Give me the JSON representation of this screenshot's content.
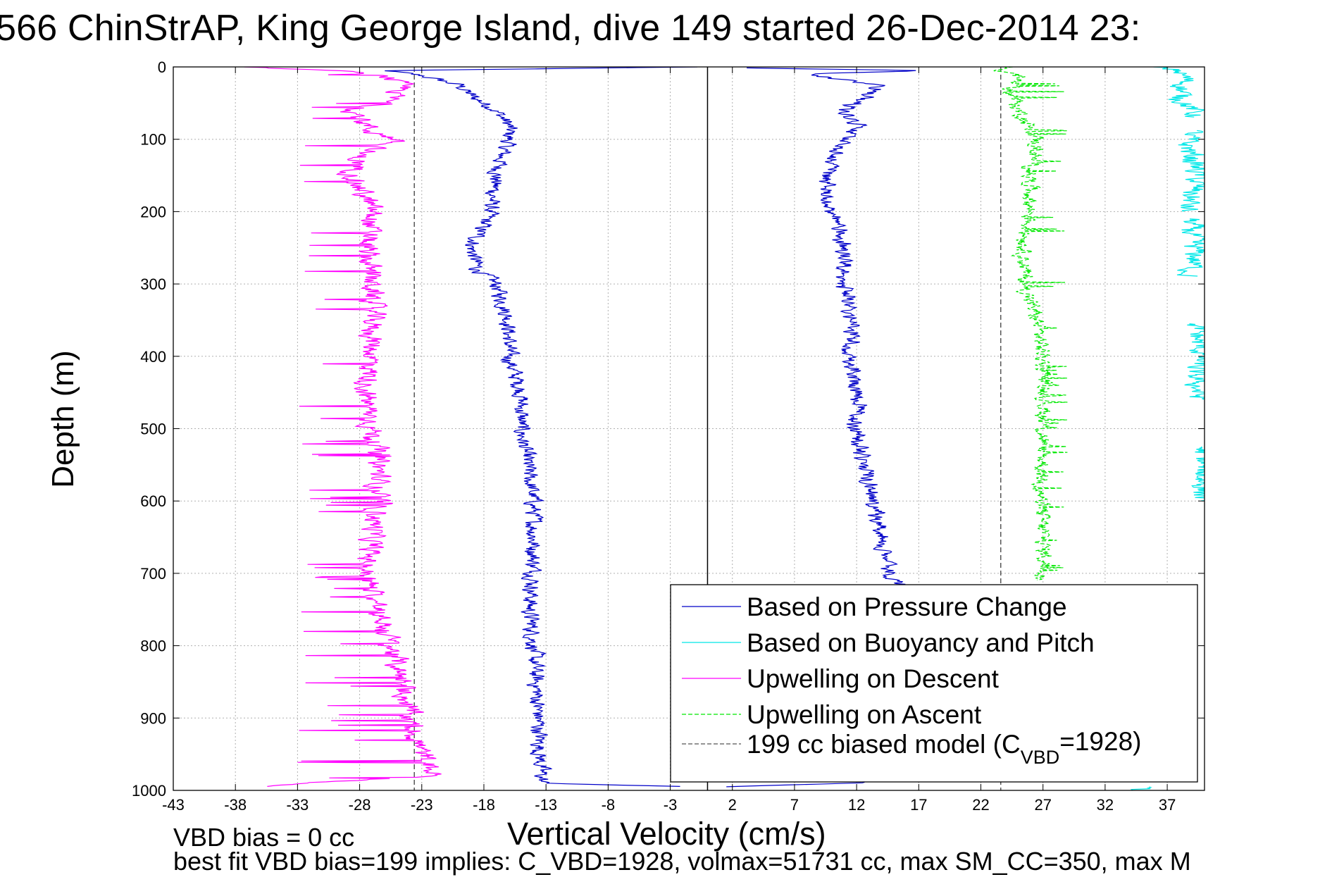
{
  "chart_data": {
    "type": "line",
    "title": "566 ChinStrAP, King George Island, dive 149 started 26-Dec-2014 23:",
    "xlabel": "Vertical Velocity (cm/s)",
    "ylabel": "Depth (m)",
    "xlim": [
      -43,
      40
    ],
    "ylim": [
      0,
      1000
    ],
    "y_reversed": true,
    "grid": true,
    "x_ticks": [
      -43,
      -38,
      -33,
      -28,
      -23,
      -18,
      -13,
      -8,
      -3,
      2,
      7,
      12,
      17,
      22,
      27,
      32,
      37
    ],
    "y_ticks": [
      0,
      100,
      200,
      300,
      400,
      500,
      600,
      700,
      800,
      900,
      1000
    ],
    "reference_lines": [
      {
        "x": 0,
        "style": "solid",
        "color": "#000000"
      },
      {
        "x": -23.6,
        "style": "dashed",
        "color": "#555555"
      },
      {
        "x": 23.6,
        "style": "dashed",
        "color": "#555555"
      }
    ],
    "series": [
      {
        "name": "Based on Pressure Change",
        "color": "#0000c8",
        "style": "solid",
        "noise": 0.8,
        "descent": {
          "depth": [
            0,
            5,
            12,
            25,
            40,
            60,
            80,
            100,
            120,
            150,
            200,
            250,
            280,
            300,
            350,
            400,
            450,
            500,
            550,
            600,
            650,
            700,
            750,
            800,
            850,
            900,
            950,
            990,
            995
          ],
          "velocity": [
            -1,
            -26,
            -23,
            -20,
            -19,
            -17,
            -16,
            -16,
            -16.5,
            -17,
            -17.5,
            -19,
            -18.5,
            -17,
            -16,
            -16,
            -15,
            -15,
            -14.5,
            -14,
            -14,
            -14,
            -14.3,
            -14,
            -13.8,
            -13.6,
            -13.5,
            -13.3,
            -1
          ]
        },
        "ascent": {
          "depth": [
            995,
            990,
            950,
            900,
            850,
            800,
            750,
            715,
            700,
            650,
            600,
            550,
            500,
            450,
            400,
            350,
            300,
            250,
            200,
            150,
            100,
            80,
            60,
            40,
            25,
            10,
            5,
            1
          ],
          "velocity": [
            1,
            12,
            15,
            16,
            16,
            16,
            16,
            15.5,
            14.5,
            14,
            13.5,
            12.5,
            12,
            12,
            11.5,
            11.5,
            11,
            11,
            10,
            9.5,
            11,
            12,
            11,
            13,
            13.5,
            8,
            17,
            1
          ]
        }
      },
      {
        "name": "Based on Buoyancy and Pitch",
        "color": "#00e8e8",
        "style": "solid",
        "noise": 1.2,
        "ascent_segments": [
          {
            "depth": [
              0,
              5,
              20,
              40,
              60,
              70
            ],
            "velocity": [
              36,
              38,
              38.5,
              38,
              39,
              39.5
            ]
          },
          {
            "depth": [
              88,
              100,
              150,
              200
            ],
            "velocity": [
              39,
              38.5,
              39.5,
              38.5
            ]
          },
          {
            "depth": [
              210,
              240,
              260,
              290
            ],
            "velocity": [
              38.8,
              39,
              39.3,
              38.8
            ]
          },
          {
            "depth": [
              355,
              380,
              400,
              420,
              460
            ],
            "velocity": [
              39.3,
              39.5,
              39.8,
              39.2,
              39.6
            ]
          },
          {
            "depth": [
              525,
              600
            ],
            "velocity": [
              39.8,
              39.9
            ]
          },
          {
            "depth": [
              995,
              1000
            ],
            "velocity": [
              36,
              34
            ]
          }
        ]
      },
      {
        "name": "Upwelling on Descent",
        "color": "#ff00ff",
        "style": "solid",
        "noise": 1.1,
        "spike_to": -33,
        "depth": [
          0,
          5,
          15,
          30,
          50,
          60,
          80,
          90,
          100,
          120,
          150,
          200,
          250,
          300,
          350,
          400,
          450,
          500,
          550,
          600,
          650,
          700,
          750,
          800,
          850,
          900,
          950,
          980,
          995
        ],
        "velocity": [
          -38,
          -30,
          -25.5,
          -24.5,
          -26,
          -28.5,
          -27.5,
          -27,
          -25,
          -28,
          -28.5,
          -27,
          -27.5,
          -27,
          -27,
          -27,
          -27.5,
          -27,
          -26.5,
          -26.5,
          -27,
          -27.5,
          -26.5,
          -25.5,
          -24.5,
          -24,
          -23,
          -22,
          -37
        ]
      },
      {
        "name": "Upwelling on Ascent",
        "color": "#00e800",
        "style": "dashed",
        "noise": 0.8,
        "spike_to": 29,
        "depth": [
          0,
          5,
          10,
          30,
          60,
          70,
          90,
          100,
          150,
          200,
          250,
          300,
          350,
          400,
          450,
          500,
          550,
          600,
          650,
          700,
          710
        ],
        "velocity": [
          25,
          23,
          25,
          24.5,
          25,
          25.5,
          26,
          26.5,
          26,
          26,
          25.5,
          25.5,
          26.5,
          27,
          27.2,
          27,
          27,
          26.8,
          27,
          27.2,
          27
        ]
      }
    ],
    "legend": {
      "placement": "lower-right",
      "entries": [
        {
          "label": "Based on Pressure Change",
          "color": "#0000c8",
          "style": "solid"
        },
        {
          "label": "Based on Buoyancy and Pitch",
          "color": "#00e8e8",
          "style": "solid"
        },
        {
          "label": "Upwelling on Descent",
          "color": "#ff00ff",
          "style": "solid"
        },
        {
          "label": "Upwelling on Ascent",
          "color": "#00e800",
          "style": "dashed"
        },
        {
          "label": "199 cc biased model (C",
          "sub": "VBD",
          "suffix": "=1928)",
          "color": "#555555",
          "style": "dashed"
        }
      ]
    }
  },
  "annotations": {
    "vbd_bias": "VBD bias = 0 cc",
    "best_fit": "best fit VBD bias=199 implies: C_VBD=1928, volmax=51731 cc, max SM_CC=350, max M"
  }
}
